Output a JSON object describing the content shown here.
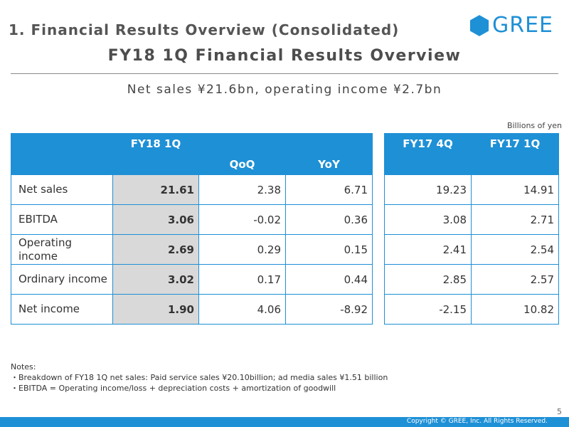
{
  "header": {
    "section_title": "1. Financial Results Overview (Consolidated)",
    "logo_text": "GREE",
    "main_title": "FY18 1Q Financial Results Overview",
    "subtitle": "Net sales ¥21.6bn, operating income ¥2.7bn",
    "unit": "Billions of yen"
  },
  "table": {
    "headers": {
      "current": "FY18 1Q",
      "qoq": "QoQ",
      "yoy": "YoY",
      "prev_q": "FY17 4Q",
      "prev_y": "FY17 1Q"
    },
    "rows": [
      {
        "label": "Net sales",
        "current": "21.61",
        "qoq": "2.38",
        "yoy": "6.71",
        "prev_q": "19.23",
        "prev_y": "14.91"
      },
      {
        "label": "EBITDA",
        "current": "3.06",
        "qoq": "-0.02",
        "yoy": "0.36",
        "prev_q": "3.08",
        "prev_y": "2.71"
      },
      {
        "label": "Operating income",
        "current": "2.69",
        "qoq": "0.29",
        "yoy": "0.15",
        "prev_q": "2.41",
        "prev_y": "2.54"
      },
      {
        "label": "Ordinary income",
        "current": "3.02",
        "qoq": "0.17",
        "yoy": "0.44",
        "prev_q": "2.85",
        "prev_y": "2.57"
      },
      {
        "label": "Net income",
        "current": "1.90",
        "qoq": "4.06",
        "yoy": "-8.92",
        "prev_q": "-2.15",
        "prev_y": "10.82"
      }
    ]
  },
  "notes": {
    "title": "Notes:",
    "items": [
      "・Breakdown of FY18 1Q net sales: Paid service sales ¥20.10billion; ad media sales ¥1.51 billion",
      "・EBITDA = Operating income/loss + depreciation costs + amortization of goodwill"
    ]
  },
  "footer": {
    "page_number": "5",
    "copyright": "Copyright © GREE, Inc. All Rights Reserved."
  },
  "colors": {
    "accent": "#1e90d6",
    "highlight_cell": "#d9d9d9"
  }
}
